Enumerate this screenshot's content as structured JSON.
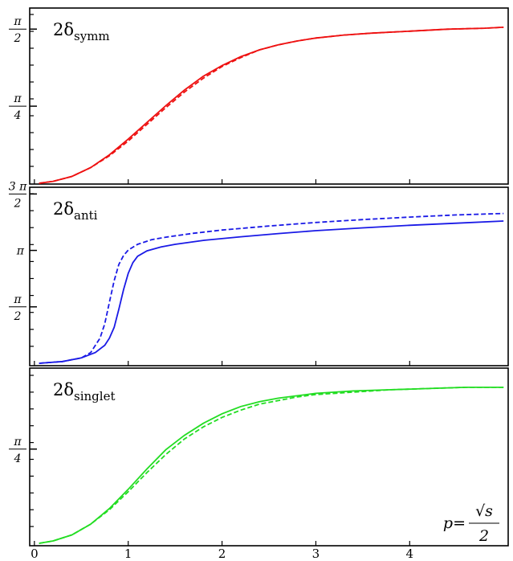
{
  "chart_data": [
    {
      "type": "line",
      "panel_label": {
        "main": "2δ",
        "sub": "symm"
      },
      "y_tick_labels": [
        {
          "value": 1.5708,
          "numerator": "π",
          "denominator": "2"
        },
        {
          "value": 0.7854,
          "numerator": "π",
          "denominator": "4"
        }
      ],
      "ylim": [
        0,
        1.72
      ],
      "color": "#ee1111",
      "series": [
        {
          "style": "solid",
          "x": [
            0.05,
            0.2,
            0.4,
            0.6,
            0.8,
            1.0,
            1.2,
            1.4,
            1.6,
            1.8,
            2.0,
            2.2,
            2.4,
            2.6,
            2.8,
            3.0,
            3.3,
            3.6,
            4.0,
            4.4,
            4.8,
            5.0
          ],
          "y": [
            0.0,
            0.02,
            0.07,
            0.16,
            0.29,
            0.45,
            0.62,
            0.79,
            0.95,
            1.09,
            1.2,
            1.29,
            1.36,
            1.41,
            1.45,
            1.48,
            1.51,
            1.53,
            1.55,
            1.57,
            1.58,
            1.59
          ]
        },
        {
          "style": "dashed",
          "x": [
            0.05,
            0.2,
            0.4,
            0.6,
            0.8,
            1.0,
            1.2,
            1.4,
            1.6,
            1.8,
            2.0,
            2.2,
            2.4,
            2.6,
            2.8,
            3.0,
            3.3,
            3.6,
            4.0,
            4.4,
            4.8,
            5.0
          ],
          "y": [
            0.0,
            0.02,
            0.07,
            0.16,
            0.28,
            0.43,
            0.6,
            0.77,
            0.93,
            1.07,
            1.19,
            1.28,
            1.36,
            1.41,
            1.45,
            1.48,
            1.51,
            1.53,
            1.55,
            1.57,
            1.58,
            1.59
          ]
        }
      ]
    },
    {
      "type": "line",
      "panel_label": {
        "main": "2δ",
        "sub": "anti"
      },
      "y_tick_labels": [
        {
          "value": 4.7124,
          "numerator": "3 π",
          "denominator": "2"
        },
        {
          "value": 3.1416,
          "numerator": "π",
          "denominator": ""
        },
        {
          "value": 1.5708,
          "numerator": "π",
          "denominator": "2"
        }
      ],
      "ylim": [
        0,
        4.72
      ],
      "color": "#1a1ae6",
      "series": [
        {
          "style": "solid",
          "x": [
            0.05,
            0.3,
            0.5,
            0.65,
            0.75,
            0.8,
            0.85,
            0.9,
            0.95,
            1.0,
            1.05,
            1.1,
            1.2,
            1.35,
            1.5,
            1.8,
            2.2,
            2.6,
            3.0,
            3.5,
            4.0,
            4.5,
            5.0
          ],
          "y": [
            0.0,
            0.05,
            0.15,
            0.3,
            0.5,
            0.7,
            1.0,
            1.5,
            2.05,
            2.5,
            2.8,
            2.98,
            3.13,
            3.24,
            3.31,
            3.42,
            3.52,
            3.61,
            3.69,
            3.77,
            3.84,
            3.9,
            3.96
          ]
        },
        {
          "style": "dashed",
          "x": [
            0.05,
            0.3,
            0.5,
            0.6,
            0.7,
            0.75,
            0.8,
            0.85,
            0.9,
            0.95,
            1.0,
            1.1,
            1.25,
            1.4,
            1.7,
            2.0,
            2.5,
            3.0,
            3.5,
            4.0,
            4.5,
            5.0
          ],
          "y": [
            0.0,
            0.05,
            0.15,
            0.3,
            0.7,
            1.1,
            1.7,
            2.3,
            2.75,
            3.0,
            3.15,
            3.31,
            3.44,
            3.51,
            3.62,
            3.71,
            3.82,
            3.92,
            4.0,
            4.07,
            4.13,
            4.17
          ]
        }
      ]
    },
    {
      "type": "line",
      "panel_label": {
        "main": "2δ",
        "sub": "singlet"
      },
      "y_tick_labels": [
        {
          "value": 0.7854,
          "numerator": "π",
          "denominator": "4"
        }
      ],
      "ylim": [
        0,
        1.4
      ],
      "color": "#22dd22",
      "series": [
        {
          "style": "solid",
          "x": [
            0.05,
            0.2,
            0.4,
            0.6,
            0.8,
            1.0,
            1.2,
            1.4,
            1.6,
            1.8,
            2.0,
            2.2,
            2.4,
            2.6,
            2.8,
            3.0,
            3.4,
            3.8,
            4.2,
            4.6,
            5.0
          ],
          "y": [
            0.0,
            0.02,
            0.07,
            0.16,
            0.29,
            0.45,
            0.62,
            0.78,
            0.9,
            1.0,
            1.08,
            1.14,
            1.18,
            1.21,
            1.23,
            1.25,
            1.27,
            1.28,
            1.29,
            1.3,
            1.3
          ]
        },
        {
          "style": "dashed",
          "x": [
            0.05,
            0.2,
            0.4,
            0.6,
            0.8,
            1.0,
            1.2,
            1.4,
            1.6,
            1.8,
            2.0,
            2.2,
            2.4,
            2.6,
            2.8,
            3.0,
            3.4,
            3.8,
            4.2,
            4.6,
            5.0
          ],
          "y": [
            0.0,
            0.02,
            0.07,
            0.16,
            0.28,
            0.43,
            0.59,
            0.74,
            0.87,
            0.97,
            1.05,
            1.11,
            1.16,
            1.19,
            1.22,
            1.24,
            1.26,
            1.28,
            1.29,
            1.3,
            1.3
          ]
        }
      ]
    }
  ],
  "x_axis": {
    "ticks": [
      0,
      1,
      2,
      3,
      4
    ],
    "tick_labels": [
      "0",
      "1",
      "2",
      "3",
      "4"
    ],
    "xlim": [
      -0.05,
      5.05
    ],
    "title": {
      "lhs": "p=",
      "numerator": "√s",
      "denominator": "2"
    }
  }
}
